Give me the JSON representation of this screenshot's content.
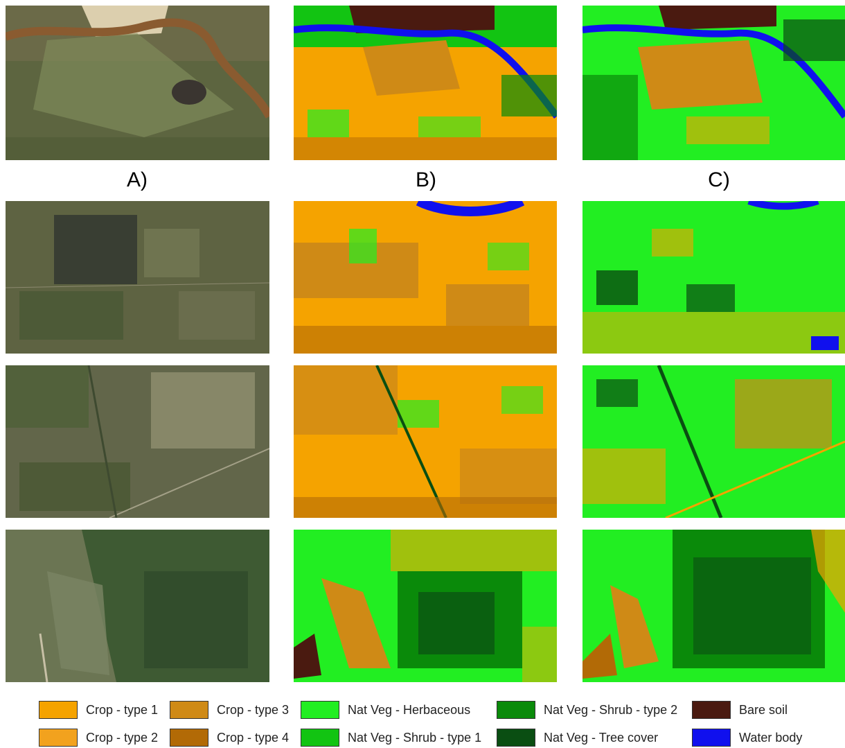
{
  "columns": [
    {
      "label": "A)"
    },
    {
      "label": "B)"
    },
    {
      "label": "C)"
    }
  ],
  "legend": [
    {
      "label": "Crop - type 1",
      "color": "#f5a300"
    },
    {
      "label": "Crop - type 2",
      "color": "#f2a21e"
    },
    {
      "label": "Crop - type 3",
      "color": "#cf8a16"
    },
    {
      "label": "Crop - type 4",
      "color": "#b26a06"
    },
    {
      "label": "Nat Veg - Herbaceous",
      "color": "#22ee22"
    },
    {
      "label": "Nat Veg - Shrub - type 1",
      "color": "#12c412"
    },
    {
      "label": "Nat Veg - Shrub - type 2",
      "color": "#0a8a0a"
    },
    {
      "label": "Nat Veg - Tree cover",
      "color": "#0a4e12"
    },
    {
      "label": "Bare soil",
      "color": "#4a1a10"
    },
    {
      "label": "Water body",
      "color": "#1010ee"
    }
  ]
}
